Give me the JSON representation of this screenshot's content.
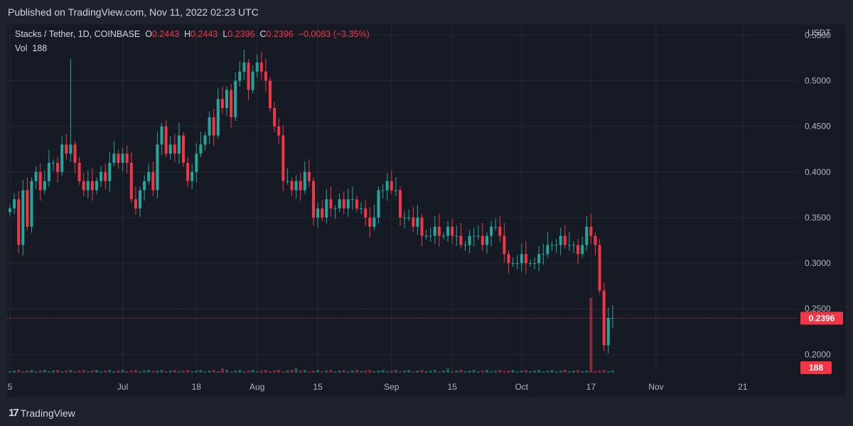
{
  "header": {
    "published": "Published on TradingView.com, Nov 11, 2022 02:23 UTC"
  },
  "legend": {
    "symbol": "Stacks / Tether, 1D, COINBASE",
    "o_label": "O",
    "o_value": "0.2443",
    "h_label": "H",
    "h_value": "0.2443",
    "l_label": "L",
    "l_value": "0.2396",
    "c_label": "C",
    "c_value": "0.2396",
    "change": "−0.0083 (−3.35%)",
    "vol_label": "Vol",
    "vol_value": "188"
  },
  "footer": {
    "brand": "TradingView",
    "logo": "17"
  },
  "colors": {
    "up": "#26a69a",
    "down": "#f23645",
    "grid": "#242833",
    "text": "#b2b5be"
  },
  "chart_data": {
    "type": "candlestick",
    "title": "Stacks / Tether, 1D, COINBASE",
    "currency_label": "USDT",
    "ylim": [
      0.18,
      0.562
    ],
    "y_ticks": [
      "0.5500",
      "0.5000",
      "0.4500",
      "0.4000",
      "0.3500",
      "0.3000",
      "0.2500",
      "0.2000"
    ],
    "y_tick_values": [
      0.55,
      0.5,
      0.45,
      0.4,
      0.35,
      0.3,
      0.25,
      0.2
    ],
    "x_ticks": [
      {
        "label": "5",
        "day": 0
      },
      {
        "label": "Jul",
        "day": 26
      },
      {
        "label": "18",
        "day": 43
      },
      {
        "label": "Aug",
        "day": 57
      },
      {
        "label": "15",
        "day": 71
      },
      {
        "label": "Sep",
        "day": 88
      },
      {
        "label": "15",
        "day": 102
      },
      {
        "label": "Oct",
        "day": 118
      },
      {
        "label": "17",
        "day": 134
      },
      {
        "label": "Nov",
        "day": 149
      },
      {
        "label": "21",
        "day": 169
      }
    ],
    "last_price": 0.2396,
    "last_price_label": "0.2396",
    "last_volume_label": "188",
    "close": [
      0.36,
      0.37,
      0.32,
      0.38,
      0.34,
      0.39,
      0.4,
      0.38,
      0.39,
      0.41,
      0.41,
      0.4,
      0.43,
      0.42,
      0.43,
      0.41,
      0.39,
      0.38,
      0.39,
      0.38,
      0.39,
      0.4,
      0.39,
      0.41,
      0.42,
      0.41,
      0.42,
      0.41,
      0.37,
      0.36,
      0.38,
      0.39,
      0.4,
      0.38,
      0.43,
      0.45,
      0.42,
      0.43,
      0.42,
      0.44,
      0.41,
      0.39,
      0.4,
      0.42,
      0.43,
      0.44,
      0.46,
      0.44,
      0.48,
      0.47,
      0.49,
      0.46,
      0.5,
      0.51,
      0.52,
      0.49,
      0.51,
      0.52,
      0.51,
      0.5,
      0.47,
      0.45,
      0.44,
      0.39,
      0.39,
      0.38,
      0.39,
      0.38,
      0.4,
      0.39,
      0.35,
      0.36,
      0.35,
      0.37,
      0.36,
      0.36,
      0.37,
      0.36,
      0.37,
      0.37,
      0.36,
      0.36,
      0.35,
      0.34,
      0.35,
      0.38,
      0.38,
      0.39,
      0.38,
      0.38,
      0.35,
      0.35,
      0.35,
      0.34,
      0.35,
      0.33,
      0.33,
      0.33,
      0.34,
      0.33,
      0.33,
      0.34,
      0.33,
      0.33,
      0.32,
      0.32,
      0.33,
      0.33,
      0.33,
      0.32,
      0.33,
      0.34,
      0.34,
      0.33,
      0.31,
      0.3,
      0.3,
      0.3,
      0.31,
      0.3,
      0.3,
      0.3,
      0.31,
      0.31,
      0.32,
      0.32,
      0.32,
      0.33,
      0.32,
      0.32,
      0.32,
      0.31,
      0.32,
      0.34,
      0.33,
      0.32,
      0.27,
      0.21,
      0.24,
      0.24
    ],
    "up_color": "#26a69a",
    "down_color": "#f23645"
  }
}
